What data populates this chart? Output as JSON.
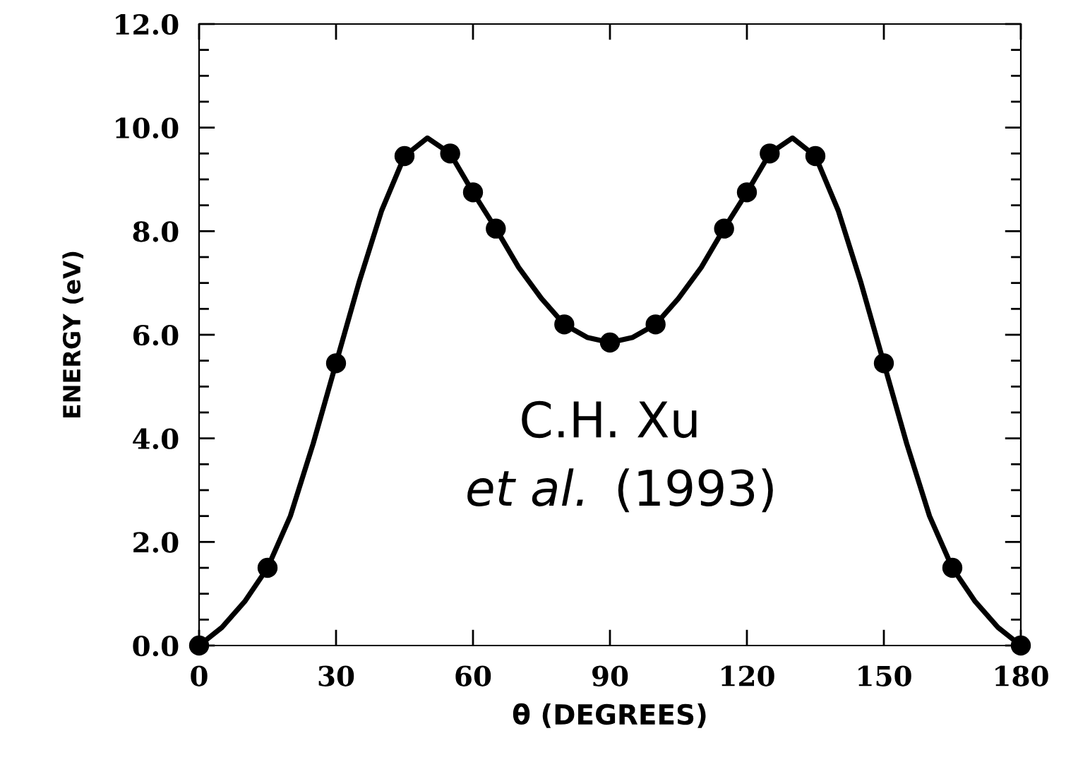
{
  "chart_data": {
    "type": "scatter",
    "xlabel": "θ (DEGREES)",
    "ylabel": "ENERGY (eV)",
    "xlim": [
      0,
      180
    ],
    "ylim": [
      0,
      12
    ],
    "xticks": [
      0,
      30,
      60,
      90,
      120,
      150,
      180
    ],
    "yticks": [
      {
        "value": 0,
        "label": "0.0"
      },
      {
        "value": 2,
        "label": "2.0"
      },
      {
        "value": 4,
        "label": "4.0"
      },
      {
        "value": 6,
        "label": "6.0"
      },
      {
        "value": 8,
        "label": "8.0"
      },
      {
        "value": 10,
        "label": "10.0"
      },
      {
        "value": 12,
        "label": "12.0"
      }
    ],
    "grid": false,
    "legend": false,
    "series": [
      {
        "type": "line",
        "color": "#000000",
        "line_style": "solid",
        "marker": "none",
        "x": [
          0,
          5,
          10,
          15,
          20,
          25,
          30,
          35,
          40,
          45,
          50,
          55,
          60,
          65,
          70,
          75,
          80,
          85,
          90,
          95,
          100,
          105,
          110,
          115,
          120,
          125,
          130,
          135,
          140,
          145,
          150,
          155,
          160,
          165,
          170,
          175,
          180
        ],
        "values": [
          0,
          0.35,
          0.85,
          1.5,
          2.5,
          3.9,
          5.45,
          7.0,
          8.4,
          9.45,
          9.8,
          9.5,
          8.75,
          8.05,
          7.3,
          6.7,
          6.2,
          5.95,
          5.85,
          5.95,
          6.2,
          6.7,
          7.3,
          8.05,
          8.75,
          9.5,
          9.8,
          9.45,
          8.4,
          7.0,
          5.45,
          3.9,
          2.5,
          1.5,
          0.85,
          0.35,
          0
        ]
      },
      {
        "color": "#000000",
        "marker": "circle",
        "x": [
          0,
          15,
          30,
          45,
          55,
          60,
          65,
          80,
          90,
          100,
          115,
          120,
          125,
          135,
          150,
          165,
          180
        ],
        "values": [
          0,
          1.5,
          5.45,
          9.45,
          9.5,
          8.75,
          8.05,
          6.2,
          5.85,
          6.2,
          8.05,
          8.75,
          9.5,
          9.45,
          5.45,
          1.5,
          0
        ]
      }
    ],
    "annotations": [
      "C.H. Xu",
      "et al.",
      "(1993)"
    ]
  }
}
